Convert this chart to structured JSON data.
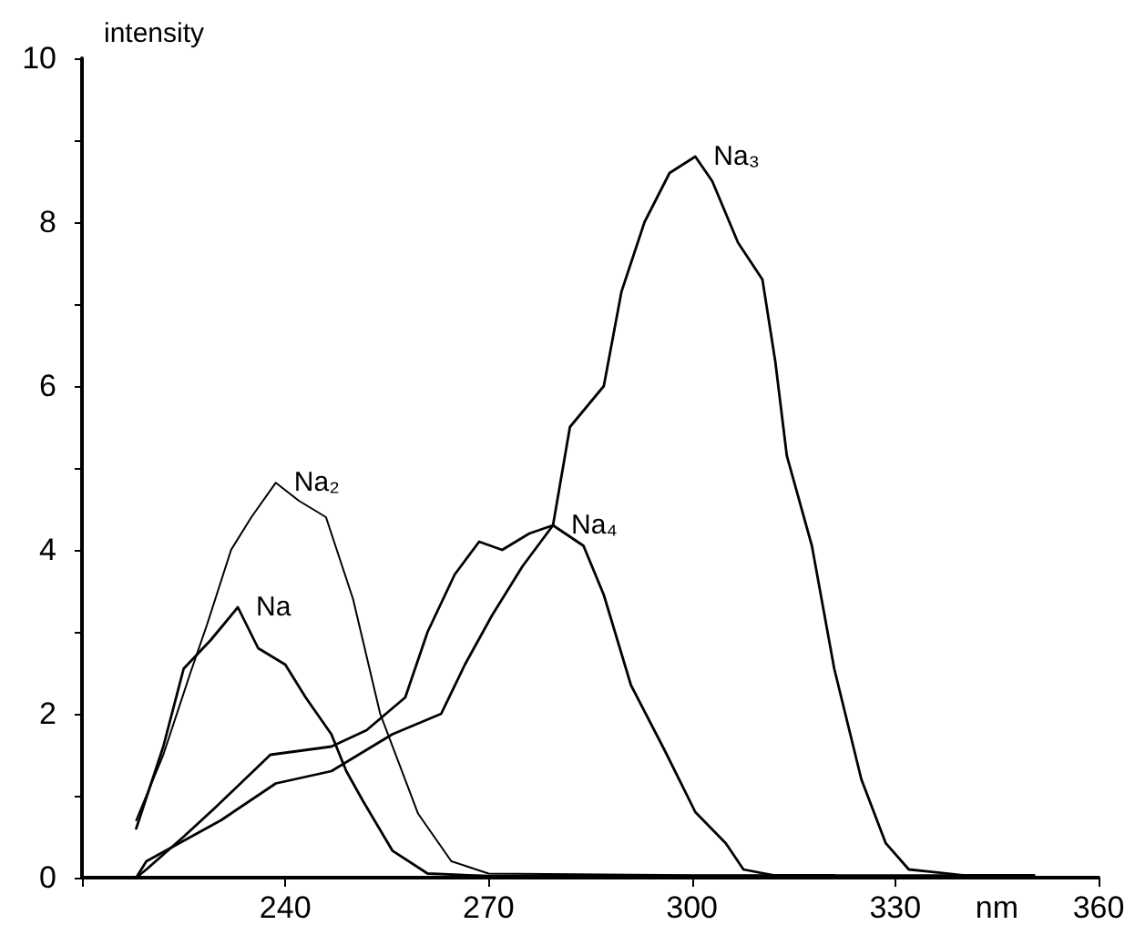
{
  "chart_data": {
    "type": "line",
    "xlabel": "nm",
    "ylabel": "intensity",
    "xlim": [
      210,
      360
    ],
    "xticks": [
      {
        "value": 210,
        "label": null
      },
      240,
      270,
      300,
      330,
      360
    ],
    "ylim": [
      0,
      10
    ],
    "yticks": [
      0,
      {
        "value": 1,
        "label": null
      },
      2,
      {
        "value": 3,
        "label": null
      },
      4,
      {
        "value": 5,
        "label": null
      },
      6,
      {
        "value": 7,
        "label": null
      },
      8,
      {
        "value": 9,
        "label": null
      },
      10
    ],
    "grid": false,
    "marker": "none",
    "line_style": "solid",
    "series": [
      {
        "name": "Na",
        "color": "#000000",
        "x": [
          218,
          222,
          225,
          229,
          233,
          236,
          240,
          243,
          246.8,
          249,
          251.5,
          255.8,
          261,
          270,
          290,
          321
        ],
        "values": [
          0.6,
          1.6,
          2.55,
          2.9,
          3.3,
          2.8,
          2.6,
          2.2,
          1.75,
          1.3,
          0.93,
          0.33,
          0.05,
          0.02,
          0.02,
          0.02
        ]
      },
      {
        "name": "Na₂",
        "color": "#000000",
        "x": [
          218,
          222,
          226,
          228.5,
          232,
          235,
          238.6,
          242,
          246,
          250,
          254,
          259.6,
          264.5,
          270,
          300,
          340
        ],
        "values": [
          0.7,
          1.5,
          2.5,
          3.1,
          4.0,
          4.4,
          4.82,
          4.6,
          4.4,
          3.4,
          2.0,
          0.78,
          0.2,
          0.05,
          0.03,
          0.03
        ]
      },
      {
        "name": "Na₃",
        "color": "#000000",
        "x": [
          218,
          219.5,
          225,
          230.5,
          238.6,
          246.8,
          255.8,
          263,
          266.5,
          270.5,
          275,
          279.5,
          282,
          287,
          289.6,
          293,
          296.7,
          300.5,
          303,
          306.8,
          310.4,
          312.3,
          314,
          317.7,
          321,
          325,
          328.6,
          332,
          340,
          350.5
        ],
        "values": [
          0,
          0.2,
          0.45,
          0.7,
          1.15,
          1.3,
          1.75,
          2.0,
          2.6,
          3.2,
          3.8,
          4.3,
          5.5,
          6.0,
          7.15,
          8.0,
          8.6,
          8.8,
          8.5,
          7.75,
          7.3,
          6.3,
          5.15,
          4.05,
          2.55,
          1.2,
          0.42,
          0.1,
          0.03,
          0.03
        ]
      },
      {
        "name": "Na₄",
        "color": "#000000",
        "x": [
          218,
          219.5,
          225,
          229.6,
          237.8,
          246.8,
          252,
          257.7,
          261,
          265,
          268.6,
          272,
          276,
          279.5,
          284,
          287,
          291,
          296,
          300.5,
          305,
          307.6,
          312,
          321
        ],
        "values": [
          0,
          0.1,
          0.5,
          0.85,
          1.5,
          1.6,
          1.8,
          2.2,
          3.0,
          3.7,
          4.1,
          4.0,
          4.2,
          4.3,
          4.05,
          3.45,
          2.35,
          1.55,
          0.8,
          0.42,
          0.1,
          0.03,
          0.03
        ]
      }
    ]
  }
}
